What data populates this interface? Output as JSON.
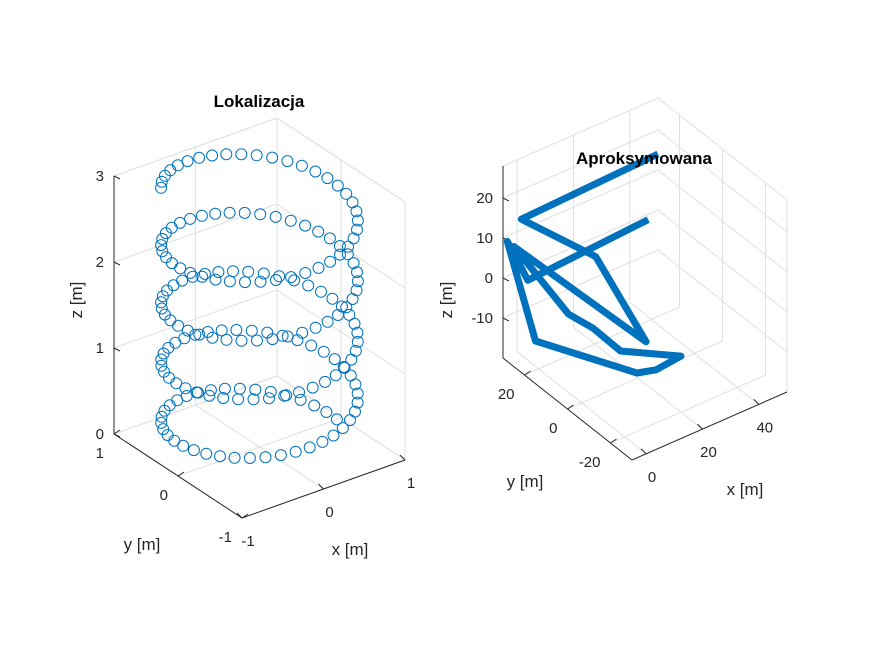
{
  "colors": {
    "series": "#0072BD",
    "axis": "#262626",
    "grid": "#dfdfdf"
  },
  "chart_data": [
    {
      "type": "scatter",
      "title": "Lokalizacja",
      "xlabel": "x [m]",
      "ylabel": "y [m]",
      "zlabel": "z [m]",
      "xlim": [
        -1,
        1
      ],
      "ylim": [
        -1,
        1
      ],
      "zlim": [
        0,
        3
      ],
      "xticks": [
        -1,
        0,
        1
      ],
      "yticks": [
        -1,
        0,
        1
      ],
      "zticks": [
        0,
        1,
        2,
        3
      ],
      "grid": true,
      "marker": "circle",
      "series": [
        {
          "helix": {
            "turns": 4.4,
            "points": 176,
            "radius": 0.95,
            "z_start": 0.0,
            "z_end": 3.0
          }
        }
      ]
    },
    {
      "type": "line",
      "title": "Aproksymowana",
      "xlabel": "x [m]",
      "ylabel": "y [m]",
      "zlabel": "z [m]",
      "xlim": [
        -5,
        50
      ],
      "ylim": [
        -30,
        30
      ],
      "zlim": [
        -20,
        28
      ],
      "xticks": [
        0,
        20,
        40
      ],
      "yticks": [
        -20,
        0,
        20
      ],
      "zticks": [
        -10,
        0,
        10,
        20
      ],
      "grid": true,
      "series": [
        {
          "points": [
            [
              50,
              30,
              14
            ],
            [
              0,
              28,
              14
            ],
            [
              5,
              0,
              15
            ],
            [
              0,
              -30,
              8
            ],
            [
              -5,
              25,
              10
            ],
            [
              3,
              10,
              -3
            ],
            [
              8,
              5,
              -6
            ],
            [
              10,
              -5,
              -8
            ],
            [
              20,
              -20,
              -6
            ],
            [
              15,
              -15,
              -10
            ],
            [
              12,
              -10,
              -12
            ],
            [
              5,
              28,
              -18
            ],
            [
              -5,
              28,
              10
            ],
            [
              0,
              25,
              0
            ],
            [
              45,
              28,
              0
            ]
          ]
        }
      ]
    }
  ]
}
